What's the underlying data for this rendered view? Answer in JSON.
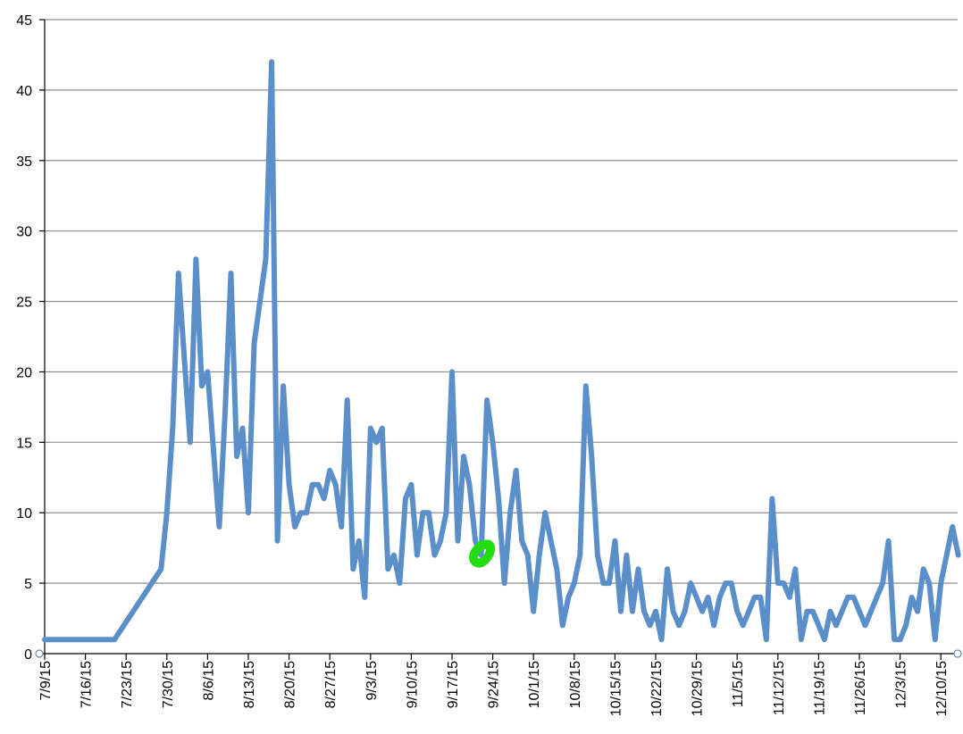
{
  "chart_data": {
    "type": "line",
    "title": "",
    "xlabel": "",
    "ylabel": "",
    "ylim": [
      0,
      45
    ],
    "yticks": [
      0,
      5,
      10,
      15,
      20,
      25,
      30,
      35,
      40,
      45
    ],
    "grid": true,
    "legend": "none",
    "xlim": [
      "2015-07-09",
      "2015-12-14"
    ],
    "xtick_labels": [
      "7/9/15",
      "7/16/15",
      "7/23/15",
      "7/30/15",
      "8/6/15",
      "8/13/15",
      "8/20/15",
      "8/27/15",
      "9/3/15",
      "9/10/15",
      "9/17/15",
      "9/24/15",
      "10/1/15",
      "10/8/15",
      "10/15/15",
      "10/22/15",
      "10/29/15",
      "11/5/15",
      "11/12/15",
      "11/19/15",
      "11/26/15",
      "12/3/15",
      "12/10/15"
    ],
    "colors": {
      "series": "#5b8fca",
      "highlight": "#22dd11"
    },
    "series": [
      {
        "color": "#5b8fca",
        "points": [
          [
            "2015-07-09",
            1
          ],
          [
            "2015-07-14",
            1
          ],
          [
            "2015-07-19",
            1
          ],
          [
            "2015-07-21",
            1
          ],
          [
            "2015-07-29",
            6
          ],
          [
            "2015-07-30",
            10
          ],
          [
            "2015-07-31",
            16
          ],
          [
            "2015-08-01",
            27
          ],
          [
            "2015-08-02",
            21
          ],
          [
            "2015-08-03",
            15
          ],
          [
            "2015-08-04",
            28
          ],
          [
            "2015-08-05",
            19
          ],
          [
            "2015-08-06",
            20
          ],
          [
            "2015-08-08",
            9
          ],
          [
            "2015-08-09",
            17
          ],
          [
            "2015-08-10",
            27
          ],
          [
            "2015-08-11",
            14
          ],
          [
            "2015-08-12",
            16
          ],
          [
            "2015-08-13",
            10
          ],
          [
            "2015-08-14",
            22
          ],
          [
            "2015-08-16",
            28
          ],
          [
            "2015-08-17",
            42
          ],
          [
            "2015-08-18",
            8
          ],
          [
            "2015-08-19",
            19
          ],
          [
            "2015-08-20",
            12
          ],
          [
            "2015-08-21",
            9
          ],
          [
            "2015-08-22",
            10
          ],
          [
            "2015-08-23",
            10
          ],
          [
            "2015-08-24",
            12
          ],
          [
            "2015-08-25",
            12
          ],
          [
            "2015-08-26",
            11
          ],
          [
            "2015-08-27",
            13
          ],
          [
            "2015-08-28",
            12
          ],
          [
            "2015-08-29",
            9
          ],
          [
            "2015-08-30",
            18
          ],
          [
            "2015-08-31",
            6
          ],
          [
            "2015-09-01",
            8
          ],
          [
            "2015-09-02",
            4
          ],
          [
            "2015-09-03",
            16
          ],
          [
            "2015-09-04",
            15
          ],
          [
            "2015-09-05",
            16
          ],
          [
            "2015-09-06",
            6
          ],
          [
            "2015-09-07",
            7
          ],
          [
            "2015-09-08",
            5
          ],
          [
            "2015-09-09",
            11
          ],
          [
            "2015-09-10",
            12
          ],
          [
            "2015-09-11",
            7
          ],
          [
            "2015-09-12",
            10
          ],
          [
            "2015-09-13",
            10
          ],
          [
            "2015-09-14",
            7
          ],
          [
            "2015-09-15",
            8
          ],
          [
            "2015-09-16",
            10
          ],
          [
            "2015-09-17",
            20
          ],
          [
            "2015-09-18",
            8
          ],
          [
            "2015-09-19",
            14
          ],
          [
            "2015-09-20",
            12
          ],
          [
            "2015-09-21",
            8
          ],
          [
            "2015-09-22",
            7
          ],
          [
            "2015-09-23",
            18
          ],
          [
            "2015-09-24",
            15
          ],
          [
            "2015-09-25",
            11
          ],
          [
            "2015-09-26",
            5
          ],
          [
            "2015-09-27",
            10
          ],
          [
            "2015-09-28",
            13
          ],
          [
            "2015-09-29",
            8
          ],
          [
            "2015-09-30",
            7
          ],
          [
            "2015-10-01",
            3
          ],
          [
            "2015-10-02",
            7
          ],
          [
            "2015-10-03",
            10
          ],
          [
            "2015-10-04",
            8
          ],
          [
            "2015-10-05",
            6
          ],
          [
            "2015-10-06",
            2
          ],
          [
            "2015-10-07",
            4
          ],
          [
            "2015-10-08",
            5
          ],
          [
            "2015-10-09",
            7
          ],
          [
            "2015-10-10",
            19
          ],
          [
            "2015-10-11",
            14
          ],
          [
            "2015-10-12",
            7
          ],
          [
            "2015-10-13",
            5
          ],
          [
            "2015-10-14",
            5
          ],
          [
            "2015-10-15",
            8
          ],
          [
            "2015-10-16",
            3
          ],
          [
            "2015-10-17",
            7
          ],
          [
            "2015-10-18",
            3
          ],
          [
            "2015-10-19",
            6
          ],
          [
            "2015-10-20",
            3
          ],
          [
            "2015-10-21",
            2
          ],
          [
            "2015-10-22",
            3
          ],
          [
            "2015-10-23",
            1
          ],
          [
            "2015-10-24",
            6
          ],
          [
            "2015-10-25",
            3
          ],
          [
            "2015-10-26",
            2
          ],
          [
            "2015-10-27",
            3
          ],
          [
            "2015-10-28",
            5
          ],
          [
            "2015-10-29",
            4
          ],
          [
            "2015-10-30",
            3
          ],
          [
            "2015-10-31",
            4
          ],
          [
            "2015-11-01",
            2
          ],
          [
            "2015-11-02",
            4
          ],
          [
            "2015-11-03",
            5
          ],
          [
            "2015-11-04",
            5
          ],
          [
            "2015-11-05",
            3
          ],
          [
            "2015-11-06",
            2
          ],
          [
            "2015-11-07",
            3
          ],
          [
            "2015-11-08",
            4
          ],
          [
            "2015-11-09",
            4
          ],
          [
            "2015-11-10",
            1
          ],
          [
            "2015-11-11",
            11
          ],
          [
            "2015-11-12",
            5
          ],
          [
            "2015-11-13",
            5
          ],
          [
            "2015-11-14",
            4
          ],
          [
            "2015-11-15",
            6
          ],
          [
            "2015-11-16",
            1
          ],
          [
            "2015-11-17",
            3
          ],
          [
            "2015-11-18",
            3
          ],
          [
            "2015-11-19",
            2
          ],
          [
            "2015-11-20",
            1
          ],
          [
            "2015-11-21",
            3
          ],
          [
            "2015-11-22",
            2
          ],
          [
            "2015-11-23",
            3
          ],
          [
            "2015-11-24",
            4
          ],
          [
            "2015-11-25",
            4
          ],
          [
            "2015-11-26",
            3
          ],
          [
            "2015-11-27",
            2
          ],
          [
            "2015-11-28",
            3
          ],
          [
            "2015-11-29",
            4
          ],
          [
            "2015-11-30",
            5
          ],
          [
            "2015-12-01",
            8
          ],
          [
            "2015-12-02",
            1
          ],
          [
            "2015-12-03",
            1
          ],
          [
            "2015-12-04",
            2
          ],
          [
            "2015-12-05",
            4
          ],
          [
            "2015-12-06",
            3
          ],
          [
            "2015-12-07",
            6
          ],
          [
            "2015-12-08",
            5
          ],
          [
            "2015-12-09",
            1
          ],
          [
            "2015-12-10",
            5
          ],
          [
            "2015-12-11",
            7
          ],
          [
            "2015-12-12",
            9
          ],
          [
            "2015-12-13",
            7
          ]
        ]
      }
    ],
    "annotations": [
      {
        "type": "highlight-blob",
        "x": "2015-09-22",
        "y": 7,
        "color": "#22dd11"
      }
    ]
  }
}
